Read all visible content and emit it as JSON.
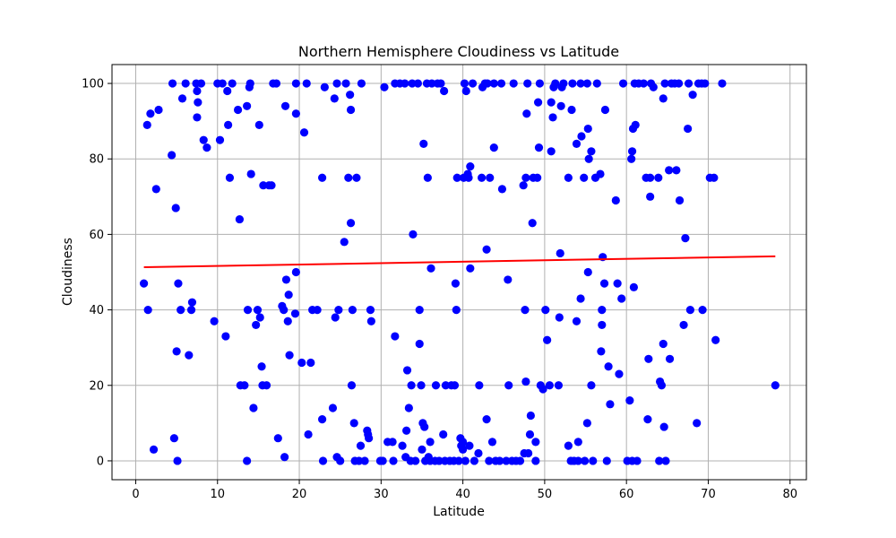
{
  "chart_data": {
    "type": "scatter",
    "title": "Northern Hemisphere Cloudiness vs Latitude",
    "xlabel": "Latitude",
    "ylabel": "Cloudiness",
    "xlim": [
      -2.9,
      82
    ],
    "ylim": [
      -5,
      105
    ],
    "xticks": [
      0,
      10,
      20,
      30,
      40,
      50,
      60,
      70,
      80
    ],
    "yticks": [
      0,
      20,
      40,
      60,
      80,
      100
    ],
    "grid": true,
    "colors": {
      "points": "#0000ff",
      "regression": "#ff0000",
      "grid": "#b0b0b0"
    },
    "regression": {
      "x": [
        1.0,
        78.2
      ],
      "y": [
        51.3,
        54.2
      ]
    },
    "points": [
      [
        1.0,
        47
      ],
      [
        1.4,
        89
      ],
      [
        1.5,
        40
      ],
      [
        1.8,
        92
      ],
      [
        2.2,
        3
      ],
      [
        2.5,
        72
      ],
      [
        2.8,
        93
      ],
      [
        4.4,
        81
      ],
      [
        4.5,
        100
      ],
      [
        4.7,
        6
      ],
      [
        4.9,
        67
      ],
      [
        5.0,
        29
      ],
      [
        5.1,
        0
      ],
      [
        5.2,
        47
      ],
      [
        5.5,
        40
      ],
      [
        5.7,
        96
      ],
      [
        6.1,
        100
      ],
      [
        6.5,
        28
      ],
      [
        6.8,
        40
      ],
      [
        6.9,
        42
      ],
      [
        7.4,
        100
      ],
      [
        7.5,
        98
      ],
      [
        7.5,
        91
      ],
      [
        7.6,
        95
      ],
      [
        8.0,
        100
      ],
      [
        8.3,
        85
      ],
      [
        8.7,
        83
      ],
      [
        9.6,
        37
      ],
      [
        10.0,
        100
      ],
      [
        10.3,
        85
      ],
      [
        10.6,
        100
      ],
      [
        11.0,
        33
      ],
      [
        11.2,
        98
      ],
      [
        11.3,
        89
      ],
      [
        11.5,
        75
      ],
      [
        11.8,
        100
      ],
      [
        12.5,
        93
      ],
      [
        12.7,
        64
      ],
      [
        12.8,
        20
      ],
      [
        13.3,
        20
      ],
      [
        13.6,
        94
      ],
      [
        13.6,
        0
      ],
      [
        13.7,
        40
      ],
      [
        13.9,
        99
      ],
      [
        14.0,
        100
      ],
      [
        14.1,
        76
      ],
      [
        14.4,
        14
      ],
      [
        14.7,
        36
      ],
      [
        14.9,
        40
      ],
      [
        15.1,
        89
      ],
      [
        15.2,
        38
      ],
      [
        15.4,
        25
      ],
      [
        15.5,
        20
      ],
      [
        15.6,
        73
      ],
      [
        16.0,
        20
      ],
      [
        16.3,
        73
      ],
      [
        16.6,
        73
      ],
      [
        16.8,
        100
      ],
      [
        17.2,
        100
      ],
      [
        17.4,
        6
      ],
      [
        17.9,
        41
      ],
      [
        18.1,
        40
      ],
      [
        18.2,
        1
      ],
      [
        18.3,
        94
      ],
      [
        18.4,
        48
      ],
      [
        18.6,
        37
      ],
      [
        18.7,
        44
      ],
      [
        18.8,
        28
      ],
      [
        19.5,
        39
      ],
      [
        19.6,
        50
      ],
      [
        19.6,
        100
      ],
      [
        19.6,
        92
      ],
      [
        20.3,
        26
      ],
      [
        20.6,
        87
      ],
      [
        20.9,
        100
      ],
      [
        21.1,
        7
      ],
      [
        21.4,
        26
      ],
      [
        21.6,
        40
      ],
      [
        22.2,
        40
      ],
      [
        22.8,
        75
      ],
      [
        22.8,
        11
      ],
      [
        22.9,
        0
      ],
      [
        23.1,
        99
      ],
      [
        24.1,
        14
      ],
      [
        24.3,
        96
      ],
      [
        24.4,
        38
      ],
      [
        24.6,
        1
      ],
      [
        24.6,
        100
      ],
      [
        24.8,
        40
      ],
      [
        25.0,
        0
      ],
      [
        25.5,
        58
      ],
      [
        25.7,
        100
      ],
      [
        26.0,
        75
      ],
      [
        26.2,
        97
      ],
      [
        26.3,
        93
      ],
      [
        26.3,
        63
      ],
      [
        26.4,
        20
      ],
      [
        26.5,
        40
      ],
      [
        26.7,
        10
      ],
      [
        26.8,
        0
      ],
      [
        27.0,
        75
      ],
      [
        27.3,
        0
      ],
      [
        27.5,
        4
      ],
      [
        27.6,
        100
      ],
      [
        28.0,
        0
      ],
      [
        28.3,
        8
      ],
      [
        28.4,
        7
      ],
      [
        28.5,
        6
      ],
      [
        28.7,
        40
      ],
      [
        28.8,
        37
      ],
      [
        29.9,
        0
      ],
      [
        30.2,
        0
      ],
      [
        30.4,
        99
      ],
      [
        30.8,
        5
      ],
      [
        31.4,
        5
      ],
      [
        31.5,
        0
      ],
      [
        31.7,
        33
      ],
      [
        31.7,
        100
      ],
      [
        32.3,
        100
      ],
      [
        32.6,
        4
      ],
      [
        32.9,
        100
      ],
      [
        33.0,
        1
      ],
      [
        33.1,
        8
      ],
      [
        33.2,
        24
      ],
      [
        33.4,
        14
      ],
      [
        33.6,
        0
      ],
      [
        33.7,
        20
      ],
      [
        33.8,
        100
      ],
      [
        33.9,
        60
      ],
      [
        34.2,
        0
      ],
      [
        34.5,
        100
      ],
      [
        34.7,
        40
      ],
      [
        34.7,
        31
      ],
      [
        34.9,
        20
      ],
      [
        35.0,
        3
      ],
      [
        35.1,
        10
      ],
      [
        35.2,
        84
      ],
      [
        35.3,
        9
      ],
      [
        35.4,
        0
      ],
      [
        35.6,
        100
      ],
      [
        35.7,
        75
      ],
      [
        35.8,
        1
      ],
      [
        36.0,
        0
      ],
      [
        36.0,
        5
      ],
      [
        36.1,
        51
      ],
      [
        36.2,
        100
      ],
      [
        36.6,
        0
      ],
      [
        36.7,
        20
      ],
      [
        36.9,
        100
      ],
      [
        37.1,
        0
      ],
      [
        37.3,
        100
      ],
      [
        37.6,
        7
      ],
      [
        37.7,
        98
      ],
      [
        37.8,
        0
      ],
      [
        37.9,
        20
      ],
      [
        38.4,
        0
      ],
      [
        38.6,
        20
      ],
      [
        38.9,
        0
      ],
      [
        39.0,
        20
      ],
      [
        39.1,
        47
      ],
      [
        39.2,
        40
      ],
      [
        39.3,
        75
      ],
      [
        39.5,
        0
      ],
      [
        39.7,
        6
      ],
      [
        39.8,
        4
      ],
      [
        40.0,
        3
      ],
      [
        40.0,
        5
      ],
      [
        40.1,
        75
      ],
      [
        40.2,
        100
      ],
      [
        40.3,
        0
      ],
      [
        40.4,
        98
      ],
      [
        40.6,
        76
      ],
      [
        40.7,
        75
      ],
      [
        40.8,
        4
      ],
      [
        40.9,
        51
      ],
      [
        40.9,
        78
      ],
      [
        41.2,
        100
      ],
      [
        41.4,
        0
      ],
      [
        41.9,
        2
      ],
      [
        42.0,
        20
      ],
      [
        42.3,
        75
      ],
      [
        42.4,
        99
      ],
      [
        42.7,
        100
      ],
      [
        42.9,
        56
      ],
      [
        42.9,
        11
      ],
      [
        43.0,
        100
      ],
      [
        43.2,
        0
      ],
      [
        43.3,
        75
      ],
      [
        43.6,
        5
      ],
      [
        43.8,
        83
      ],
      [
        43.8,
        100
      ],
      [
        44.0,
        0
      ],
      [
        44.5,
        0
      ],
      [
        44.7,
        100
      ],
      [
        44.8,
        72
      ],
      [
        45.3,
        0
      ],
      [
        45.5,
        48
      ],
      [
        45.6,
        20
      ],
      [
        46.0,
        0
      ],
      [
        46.2,
        100
      ],
      [
        46.5,
        0
      ],
      [
        47.0,
        0
      ],
      [
        47.4,
        73
      ],
      [
        47.5,
        2
      ],
      [
        47.6,
        40
      ],
      [
        47.7,
        75
      ],
      [
        47.7,
        21
      ],
      [
        47.8,
        92
      ],
      [
        47.9,
        100
      ],
      [
        48.0,
        2
      ],
      [
        48.2,
        7
      ],
      [
        48.3,
        12
      ],
      [
        48.5,
        63
      ],
      [
        48.6,
        75
      ],
      [
        48.9,
        0
      ],
      [
        48.9,
        5
      ],
      [
        49.1,
        75
      ],
      [
        49.2,
        95
      ],
      [
        49.3,
        83
      ],
      [
        49.4,
        100
      ],
      [
        49.5,
        20
      ],
      [
        49.8,
        19
      ],
      [
        50.1,
        40
      ],
      [
        50.3,
        32
      ],
      [
        50.6,
        20
      ],
      [
        50.8,
        95
      ],
      [
        50.8,
        82
      ],
      [
        51.0,
        91
      ],
      [
        51.1,
        99
      ],
      [
        51.3,
        100
      ],
      [
        51.7,
        20
      ],
      [
        51.8,
        38
      ],
      [
        51.9,
        55
      ],
      [
        52.0,
        94
      ],
      [
        52.1,
        99
      ],
      [
        52.3,
        100
      ],
      [
        52.9,
        75
      ],
      [
        52.9,
        4
      ],
      [
        53.2,
        0
      ],
      [
        53.3,
        93
      ],
      [
        53.4,
        100
      ],
      [
        53.6,
        0
      ],
      [
        53.9,
        37
      ],
      [
        53.9,
        84
      ],
      [
        54.1,
        0
      ],
      [
        54.1,
        5
      ],
      [
        54.4,
        43
      ],
      [
        54.4,
        100
      ],
      [
        54.5,
        86
      ],
      [
        54.8,
        75
      ],
      [
        54.9,
        0
      ],
      [
        55.2,
        10
      ],
      [
        55.2,
        100
      ],
      [
        55.3,
        88
      ],
      [
        55.3,
        50
      ],
      [
        55.4,
        80
      ],
      [
        55.7,
        20
      ],
      [
        55.7,
        82
      ],
      [
        55.9,
        0
      ],
      [
        56.2,
        75
      ],
      [
        56.4,
        100
      ],
      [
        56.8,
        76
      ],
      [
        56.9,
        29
      ],
      [
        57.0,
        40
      ],
      [
        57.0,
        36
      ],
      [
        57.1,
        54
      ],
      [
        57.3,
        47
      ],
      [
        57.4,
        93
      ],
      [
        57.6,
        0
      ],
      [
        57.8,
        25
      ],
      [
        58.0,
        15
      ],
      [
        58.7,
        69
      ],
      [
        58.9,
        47
      ],
      [
        59.1,
        23
      ],
      [
        59.4,
        43
      ],
      [
        59.6,
        100
      ],
      [
        60.1,
        0
      ],
      [
        60.4,
        16
      ],
      [
        60.6,
        80
      ],
      [
        60.7,
        82
      ],
      [
        60.7,
        0
      ],
      [
        60.8,
        88
      ],
      [
        60.9,
        46
      ],
      [
        61.0,
        100
      ],
      [
        61.1,
        89
      ],
      [
        61.3,
        0
      ],
      [
        61.5,
        100
      ],
      [
        62.1,
        100
      ],
      [
        62.4,
        75
      ],
      [
        62.6,
        11
      ],
      [
        62.7,
        27
      ],
      [
        62.9,
        75
      ],
      [
        62.9,
        70
      ],
      [
        63.0,
        100
      ],
      [
        63.3,
        99
      ],
      [
        63.9,
        75
      ],
      [
        64.0,
        0
      ],
      [
        64.1,
        21
      ],
      [
        64.3,
        20
      ],
      [
        64.5,
        96
      ],
      [
        64.5,
        31
      ],
      [
        64.6,
        9
      ],
      [
        64.7,
        100
      ],
      [
        64.8,
        0
      ],
      [
        65.2,
        77
      ],
      [
        65.3,
        27
      ],
      [
        65.5,
        100
      ],
      [
        65.9,
        100
      ],
      [
        66.1,
        77
      ],
      [
        66.4,
        100
      ],
      [
        66.5,
        69
      ],
      [
        67.0,
        36
      ],
      [
        67.2,
        59
      ],
      [
        67.5,
        88
      ],
      [
        67.6,
        100
      ],
      [
        67.8,
        40
      ],
      [
        68.1,
        97
      ],
      [
        68.6,
        10
      ],
      [
        68.8,
        100
      ],
      [
        69.2,
        100
      ],
      [
        69.3,
        40
      ],
      [
        69.6,
        100
      ],
      [
        70.2,
        75
      ],
      [
        70.7,
        75
      ],
      [
        70.9,
        32
      ],
      [
        71.7,
        100
      ],
      [
        78.2,
        20
      ]
    ]
  }
}
